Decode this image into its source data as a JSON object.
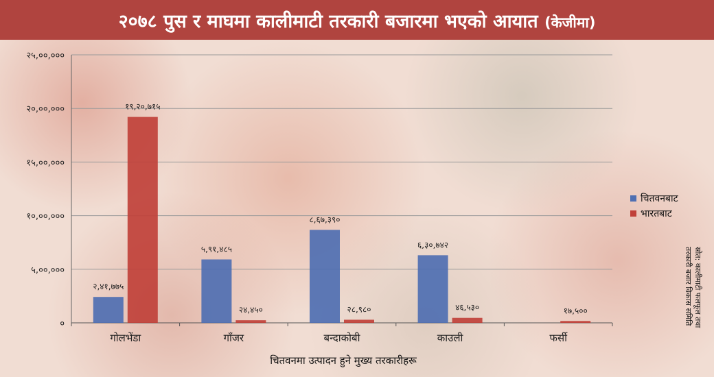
{
  "header": {
    "title": "२०७८ पुस र माघमा कालीमाटी तरकारी बजारमा भएको आयात",
    "unit": "(केजीमा)",
    "background": "#b0443f"
  },
  "source": {
    "line1": "स्रोत: कालीमाटी फलफूल तथा",
    "line2": "तरकारी बजार विकास समिति"
  },
  "chart_data": {
    "type": "bar",
    "title": "२०७८ पुस र माघमा कालीमाटी तरकारी बजारमा भएको आयात (केजीमा)",
    "xlabel": "चितवनमा उत्पादन हुने मुख्य तरकारीहरू",
    "ylabel": "",
    "categories": [
      "गोलभेंडा",
      "गाँजर",
      "बन्दाकोबी",
      "काउली",
      "फर्सी"
    ],
    "ylim": [
      0,
      2500000
    ],
    "yticks": [
      0,
      500000,
      1000000,
      1500000,
      2000000,
      2500000
    ],
    "ytick_labels": [
      "०",
      "५,००,०००",
      "१०,००,०००",
      "१५,००,०००",
      "२०,००,०००",
      "२५,००,०००"
    ],
    "grid": true,
    "legend_position": "right",
    "series": [
      {
        "name": "चितवनबाट",
        "color": "#4f6fb2",
        "values": [
          241775,
          591485,
          867390,
          630742,
          null
        ],
        "labels": [
          "२,४१,७७५",
          "५,९१,४८५",
          "८,६७,३९०",
          "६,३०,७४२",
          ""
        ]
      },
      {
        "name": "भारतबाट",
        "color": "#c0413a",
        "values": [
          1920715,
          24450,
          28980,
          46530,
          17500
        ],
        "labels": [
          "१९,२०,७१५",
          "२४,४५०",
          "२८,९८०",
          "४६,५३०",
          "१७,५००"
        ]
      }
    ]
  }
}
